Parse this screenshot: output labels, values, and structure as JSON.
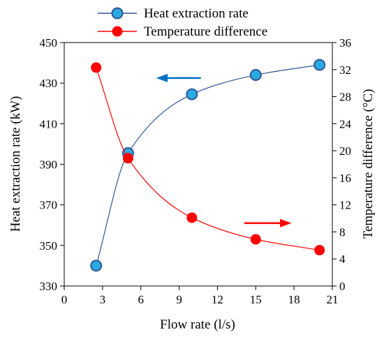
{
  "chart_data": {
    "type": "line",
    "title": "",
    "xlabel": "Flow rate (l/s)",
    "ylabel": "Heat extraction rate (kW)",
    "y2label": "Temperature difference (°C)",
    "xlim": [
      0,
      21
    ],
    "xticks": [
      0,
      3,
      6,
      9,
      12,
      15,
      18,
      21
    ],
    "ylim": [
      330,
      450
    ],
    "yticks": [
      330,
      350,
      370,
      390,
      410,
      430,
      450
    ],
    "y2lim": [
      0,
      36
    ],
    "y2ticks": [
      0,
      4,
      8,
      12,
      16,
      20,
      24,
      28,
      32,
      36
    ],
    "grid": false,
    "legend_position": "top",
    "series": [
      {
        "name": "Heat extraction rate",
        "axis": "left",
        "color": "#2f5597",
        "marker_color": "#29abe2",
        "x": [
          2.5,
          5,
          10,
          15,
          20
        ],
        "values": [
          340,
          395.5,
          424.5,
          434,
          439
        ]
      },
      {
        "name": "Temperature difference",
        "axis": "right",
        "color": "#ff0000",
        "marker_color": "#ff0000",
        "x": [
          2.5,
          5,
          10,
          15,
          20
        ],
        "values": [
          32.3,
          18.9,
          10.1,
          6.9,
          5.3
        ]
      }
    ],
    "annotations": [
      {
        "type": "arrow",
        "direction": "left",
        "points_to": "left axis",
        "color": "#0070c0"
      },
      {
        "type": "arrow",
        "direction": "right",
        "points_to": "right axis",
        "color": "#ff0000"
      }
    ]
  }
}
